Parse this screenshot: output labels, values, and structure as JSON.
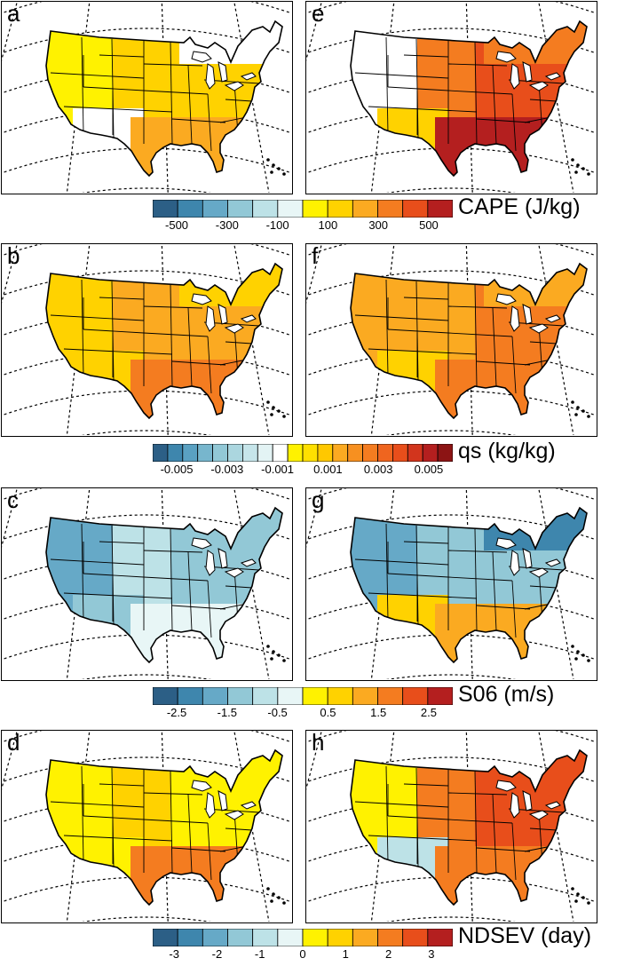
{
  "panels": [
    {
      "label": "a",
      "field": "CAPE",
      "pattern": "a"
    },
    {
      "label": "e",
      "field": "CAPE",
      "pattern": "e"
    },
    {
      "label": "b",
      "field": "qs",
      "pattern": "b"
    },
    {
      "label": "f",
      "field": "qs",
      "pattern": "f"
    },
    {
      "label": "c",
      "field": "S06",
      "pattern": "c"
    },
    {
      "label": "g",
      "field": "S06",
      "pattern": "g"
    },
    {
      "label": "d",
      "field": "NDSEV",
      "pattern": "d"
    },
    {
      "label": "h",
      "field": "NDSEV",
      "pattern": "h"
    }
  ],
  "colorbars": [
    {
      "title": "CAPE (J/kg)",
      "ticks": [
        "-500",
        "-300",
        "-100",
        "100",
        "300",
        "500"
      ],
      "colors": [
        "#2c5f86",
        "#3e86ad",
        "#66a9c7",
        "#92c8d6",
        "#bde2e7",
        "#e8f6f6",
        "#fff200",
        "#ffd200",
        "#fbaa21",
        "#f47c20",
        "#e84e1b",
        "#b41f1f"
      ]
    },
    {
      "title": "qs (kg/kg)",
      "ticks": [
        "-0.005",
        "-0.003",
        "-0.001",
        "0.001",
        "0.003",
        "0.005"
      ],
      "colors": [
        "#2c5f86",
        "#3e86ad",
        "#5aa1c2",
        "#77b6cd",
        "#92c8d6",
        "#abd6df",
        "#c6e5ea",
        "#e3f3f4",
        "#ffffff",
        "#fff200",
        "#ffe000",
        "#ffc800",
        "#fbaa21",
        "#f79020",
        "#f47c20",
        "#ef651f",
        "#e84e1b",
        "#d2351d",
        "#b41f1f",
        "#8c1414"
      ]
    },
    {
      "title": "S06 (m/s)",
      "ticks": [
        "-2.5",
        "-1.5",
        "-0.5",
        "0.5",
        "1.5",
        "2.5"
      ],
      "colors": [
        "#2c5f86",
        "#3e86ad",
        "#66a9c7",
        "#92c8d6",
        "#bde2e7",
        "#e8f6f6",
        "#fff200",
        "#ffd200",
        "#fbaa21",
        "#f47c20",
        "#e84e1b",
        "#b41f1f"
      ]
    },
    {
      "title": "NDSEV (day)",
      "ticks": [
        "-3",
        "-2",
        "-1",
        "0",
        "1",
        "2",
        "3"
      ],
      "colors": [
        "#2c5f86",
        "#3e86ad",
        "#66a9c7",
        "#92c8d6",
        "#bde2e7",
        "#e8f6f6",
        "#fff200",
        "#ffd200",
        "#fbaa21",
        "#f47c20",
        "#e84e1b",
        "#b41f1f"
      ]
    }
  ]
}
